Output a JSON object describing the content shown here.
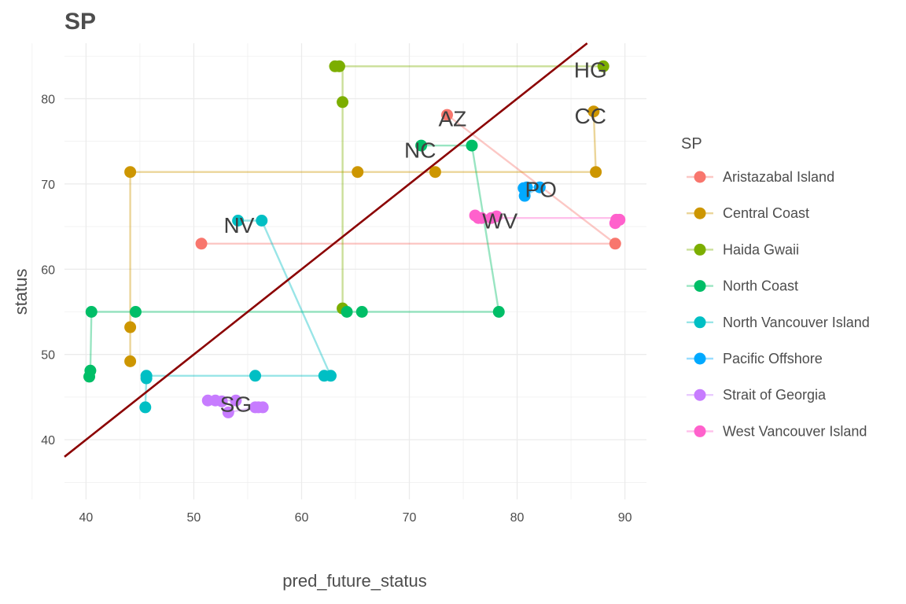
{
  "chart_data": {
    "type": "scatter",
    "title": "SP",
    "xlabel": "pred_future_status",
    "ylabel": "status",
    "xlim": [
      38,
      92
    ],
    "ylim": [
      33,
      86.5
    ],
    "x_ticks": [
      40,
      50,
      60,
      70,
      80,
      90
    ],
    "y_ticks": [
      40,
      50,
      60,
      70,
      80
    ],
    "grid": true,
    "legend_title": "SP",
    "legend_position": "right",
    "reference_line": {
      "slope": 1,
      "intercept": 0,
      "color": "#8b0000"
    },
    "series": [
      {
        "name": "Aristazabal Island",
        "label": "AZ",
        "color": "#f8766d",
        "path": [
          [
            50.7,
            63.0
          ],
          [
            89.1,
            63.0
          ],
          [
            73.5,
            78.1
          ]
        ],
        "points": [
          [
            50.7,
            63.0
          ],
          [
            89.1,
            63.0
          ],
          [
            73.5,
            78.1
          ]
        ],
        "label_at": [
          74.0,
          77.7
        ]
      },
      {
        "name": "Central Coast",
        "label": "CC",
        "color": "#cd9600",
        "path": [
          [
            44.1,
            49.2
          ],
          [
            44.1,
            53.2
          ],
          [
            44.1,
            71.4
          ],
          [
            65.2,
            71.4
          ],
          [
            72.4,
            71.4
          ],
          [
            87.3,
            71.4
          ],
          [
            87.1,
            78.5
          ]
        ],
        "points": [
          [
            44.1,
            49.2
          ],
          [
            44.1,
            53.2
          ],
          [
            44.1,
            71.4
          ],
          [
            65.2,
            71.4
          ],
          [
            72.4,
            71.4
          ],
          [
            87.3,
            71.4
          ],
          [
            87.1,
            78.5
          ]
        ],
        "label_at": [
          86.8,
          78.0
        ]
      },
      {
        "name": "Haida Gwaii",
        "label": "HG",
        "color": "#7cae00",
        "path": [
          [
            63.8,
            55.4
          ],
          [
            63.8,
            79.6
          ],
          [
            63.8,
            83.8
          ],
          [
            63.2,
            83.8
          ],
          [
            88.0,
            83.8
          ]
        ],
        "points": [
          [
            63.8,
            55.4
          ],
          [
            63.8,
            79.6
          ],
          [
            63.1,
            83.8
          ],
          [
            63.5,
            83.8
          ],
          [
            88.0,
            83.8
          ]
        ],
        "label_at": [
          86.8,
          83.4
        ]
      },
      {
        "name": "North Coast",
        "label": "NC",
        "color": "#00be67",
        "path": [
          [
            40.3,
            47.4
          ],
          [
            40.4,
            48.1
          ],
          [
            40.5,
            55.0
          ],
          [
            44.6,
            55.0
          ],
          [
            64.2,
            55.0
          ],
          [
            65.6,
            55.0
          ],
          [
            78.3,
            55.0
          ],
          [
            75.8,
            74.5
          ],
          [
            71.1,
            74.5
          ]
        ],
        "points": [
          [
            40.3,
            47.4
          ],
          [
            40.4,
            48.1
          ],
          [
            40.5,
            55.0
          ],
          [
            44.6,
            55.0
          ],
          [
            64.2,
            55.0
          ],
          [
            65.6,
            55.0
          ],
          [
            78.3,
            55.0
          ],
          [
            75.8,
            74.5
          ],
          [
            71.1,
            74.5
          ]
        ],
        "label_at": [
          71.0,
          74.0
        ]
      },
      {
        "name": "North Vancouver Island",
        "label": "NV",
        "color": "#00bfc4",
        "path": [
          [
            45.5,
            43.8
          ],
          [
            45.6,
            47.2
          ],
          [
            45.6,
            47.5
          ],
          [
            55.7,
            47.5
          ],
          [
            62.1,
            47.5
          ],
          [
            62.7,
            47.5
          ],
          [
            56.3,
            65.7
          ],
          [
            54.1,
            65.7
          ]
        ],
        "points": [
          [
            45.5,
            43.8
          ],
          [
            45.6,
            47.2
          ],
          [
            45.6,
            47.5
          ],
          [
            55.7,
            47.5
          ],
          [
            62.1,
            47.5
          ],
          [
            62.7,
            47.5
          ],
          [
            56.3,
            65.7
          ],
          [
            54.1,
            65.7
          ]
        ],
        "label_at": [
          54.2,
          65.2
        ]
      },
      {
        "name": "Pacific Offshore",
        "label": "PO",
        "color": "#00a9ff",
        "path": [
          [
            80.6,
            69.5
          ],
          [
            80.7,
            68.6
          ],
          [
            82.1,
            69.6
          ],
          [
            80.9,
            69.6
          ]
        ],
        "points": [
          [
            80.6,
            69.5
          ],
          [
            80.7,
            68.6
          ],
          [
            82.1,
            69.6
          ],
          [
            80.9,
            69.6
          ]
        ],
        "label_at": [
          82.2,
          69.4
        ]
      },
      {
        "name": "Strait of Georgia",
        "label": "SG",
        "color": "#c77cff",
        "path": [
          [
            51.3,
            44.6
          ],
          [
            53.9,
            44.6
          ],
          [
            53.2,
            43.2
          ],
          [
            55.7,
            43.8
          ],
          [
            56.4,
            43.8
          ]
        ],
        "points": [
          [
            51.3,
            44.6
          ],
          [
            52.0,
            44.6
          ],
          [
            52.6,
            44.5
          ],
          [
            53.9,
            44.6
          ],
          [
            53.2,
            43.2
          ],
          [
            55.7,
            43.8
          ],
          [
            56.0,
            43.8
          ],
          [
            56.4,
            43.8
          ]
        ],
        "label_at": [
          53.9,
          44.2
        ]
      },
      {
        "name": "West Vancouver Island",
        "label": "WV",
        "color": "#ff61cc",
        "path": [
          [
            76.1,
            66.3
          ],
          [
            77.6,
            66.0
          ],
          [
            89.1,
            66.0
          ],
          [
            89.3,
            65.8
          ]
        ],
        "points": [
          [
            76.1,
            66.3
          ],
          [
            76.4,
            66.0
          ],
          [
            76.7,
            66.0
          ],
          [
            77.6,
            66.0
          ],
          [
            78.1,
            66.2
          ],
          [
            89.2,
            65.8
          ],
          [
            89.5,
            65.8
          ],
          [
            89.1,
            65.4
          ]
        ],
        "label_at": [
          78.4,
          65.7
        ]
      }
    ]
  }
}
